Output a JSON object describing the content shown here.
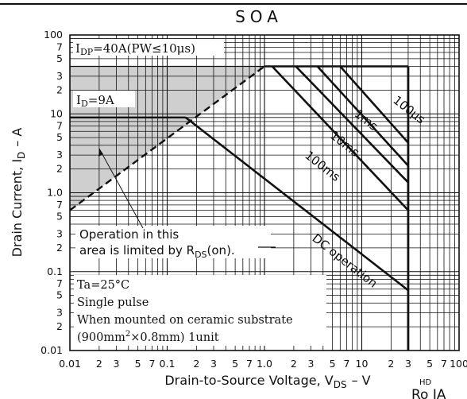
{
  "chart_data": {
    "type": "line",
    "title": "SOA",
    "xlabel": "Drain-to-Source Voltage, V",
    "xlabel_sub": "DS",
    "xlabel_unit": "– V",
    "ylabel": "Drain Current, I",
    "ylabel_sub": "D",
    "ylabel_unit": "– A",
    "x_scale": "log",
    "y_scale": "log",
    "xlim": [
      0.01,
      100
    ],
    "ylim": [
      0.01,
      100
    ],
    "grid": true,
    "x_ticks": [
      {
        "v": 0.01,
        "t": "0.01"
      },
      {
        "v": 0.02,
        "t": "2"
      },
      {
        "v": 0.03,
        "t": "3"
      },
      {
        "v": 0.05,
        "t": "5"
      },
      {
        "v": 0.07,
        "t": "7"
      },
      {
        "v": 0.1,
        "t": "0.1"
      },
      {
        "v": 0.2,
        "t": "2"
      },
      {
        "v": 0.3,
        "t": "3"
      },
      {
        "v": 0.5,
        "t": "5"
      },
      {
        "v": 0.7,
        "t": "7"
      },
      {
        "v": 1,
        "t": "1.0"
      },
      {
        "v": 2,
        "t": "2"
      },
      {
        "v": 3,
        "t": "3"
      },
      {
        "v": 5,
        "t": "5"
      },
      {
        "v": 7,
        "t": "7"
      },
      {
        "v": 10,
        "t": "10"
      },
      {
        "v": 20,
        "t": "2"
      },
      {
        "v": 30,
        "t": "3"
      },
      {
        "v": 50,
        "t": "5"
      },
      {
        "v": 70,
        "t": "7"
      },
      {
        "v": 100,
        "t": "100"
      }
    ],
    "y_ticks": [
      {
        "v": 100,
        "t": "100"
      },
      {
        "v": 70,
        "t": "7"
      },
      {
        "v": 50,
        "t": "5"
      },
      {
        "v": 30,
        "t": "3"
      },
      {
        "v": 20,
        "t": "2"
      },
      {
        "v": 10,
        "t": "10"
      },
      {
        "v": 7,
        "t": "7"
      },
      {
        "v": 5,
        "t": "5"
      },
      {
        "v": 3,
        "t": "3"
      },
      {
        "v": 2,
        "t": "2"
      },
      {
        "v": 1,
        "t": "1.0"
      },
      {
        "v": 0.7,
        "t": "7"
      },
      {
        "v": 0.5,
        "t": "5"
      },
      {
        "v": 0.3,
        "t": "3"
      },
      {
        "v": 0.2,
        "t": "2"
      },
      {
        "v": 0.1,
        "t": "0.1"
      },
      {
        "v": 0.07,
        "t": "7"
      },
      {
        "v": 0.05,
        "t": "5"
      },
      {
        "v": 0.03,
        "t": "3"
      },
      {
        "v": 0.02,
        "t": "2"
      },
      {
        "v": 0.01,
        "t": "0.01"
      }
    ],
    "limits": {
      "idp_label": "I",
      "idp_sub": "DP",
      "idp_rest": "=40A(PW≤10μs)",
      "idp_value": 40,
      "id_label": "I",
      "id_sub": "D",
      "id_rest": "=9A",
      "id_value": 9,
      "vds_max": 30
    },
    "series": [
      {
        "name": "100μs",
        "x": [
          6.0,
          30
        ],
        "y": [
          40,
          4.3
        ]
      },
      {
        "name": "1ms",
        "x": [
          3.5,
          30
        ],
        "y": [
          40,
          2.2
        ]
      },
      {
        "name": "10ms",
        "x": [
          2.1,
          30
        ],
        "y": [
          40,
          1.35
        ]
      },
      {
        "name": "100ms",
        "x": [
          1.2,
          30
        ],
        "y": [
          40,
          0.6
        ]
      },
      {
        "name": "DC operation",
        "x": [
          0.155,
          30
        ],
        "y": [
          9,
          0.058
        ]
      }
    ],
    "rds_on_limit": {
      "x": [
        0.01,
        1.0
      ],
      "y": [
        0.6,
        40
      ]
    },
    "annotations": {
      "op_line1": "Operation in this",
      "op_line2_pre": "area is limited by R",
      "op_line2_sub": "DS",
      "op_line2_post": "(on).",
      "ta": "Ta=25°C",
      "pulse": "Single pulse",
      "mount1": "When mounted on ceramic substrate",
      "mount2_a": "(900mm",
      "mount2_sup": "2",
      "mount2_b": "×0.8mm) 1unit"
    },
    "corner_text": "HD",
    "corner_text2": "Ro IA"
  }
}
